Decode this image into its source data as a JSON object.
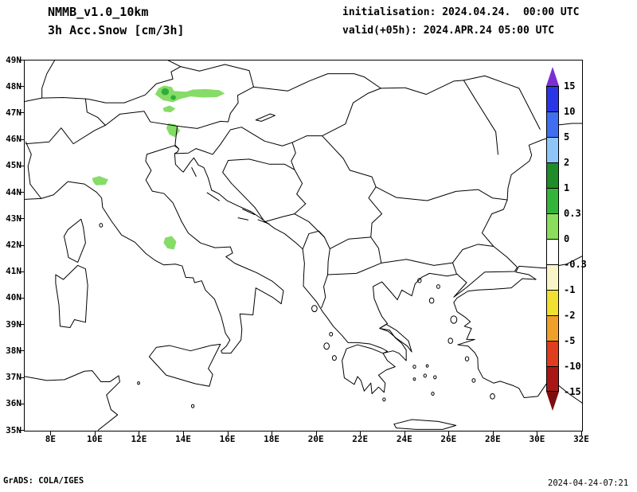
{
  "header": {
    "model": "NMMB_v1.0_10km",
    "field": "3h Acc.Snow [cm/3h]",
    "init": "initialisation: 2024.04.24.  00:00 UTC",
    "valid": "valid(+05h): 2024.APR.24 05:00 UTC"
  },
  "axes": {
    "lat_labels": [
      "49N",
      "48N",
      "47N",
      "46N",
      "45N",
      "44N",
      "43N",
      "42N",
      "41N",
      "40N",
      "39N",
      "38N",
      "37N",
      "36N",
      "35N"
    ],
    "lon_labels": [
      "8E",
      "10E",
      "12E",
      "14E",
      "16E",
      "18E",
      "20E",
      "22E",
      "24E",
      "26E",
      "28E",
      "30E",
      "32E"
    ],
    "lat_range": [
      35,
      49
    ],
    "lon_range": [
      6.8,
      32
    ]
  },
  "colorbar": {
    "levels": [
      "15",
      "10",
      "5",
      "2",
      "1",
      "0.3",
      "0",
      "-0.3",
      "-1",
      "-2",
      "-5",
      "-10",
      "-15"
    ],
    "colors": [
      "#7a2fd4",
      "#2a35e8",
      "#3f6ef0",
      "#8fc6f8",
      "#1e8c28",
      "#35b43c",
      "#8ade5c",
      "#ffffff",
      "#faf5c8",
      "#f0e032",
      "#f0a028",
      "#e03c1e",
      "#aa1616",
      "#7d0d0d"
    ]
  },
  "snow": {
    "fill_light": "#85dc66",
    "fill_medium": "#2fae37",
    "patches": [
      {
        "id": "patch-1",
        "lon": [
          12.7,
          15.85
        ],
        "lat": [
          47.42,
          48.05
        ],
        "value_cm": "0.3-2"
      },
      {
        "id": "patch-2",
        "lon": [
          13.05,
          13.62
        ],
        "lat": [
          47.04,
          47.3
        ],
        "value_cm": "0.3-1"
      },
      {
        "id": "patch-3",
        "lon": [
          13.2,
          13.82
        ],
        "lat": [
          46.1,
          46.62
        ],
        "value_cm": "0.3-1"
      },
      {
        "id": "patch-4",
        "lon": [
          9.85,
          10.58
        ],
        "lat": [
          44.28,
          44.63
        ],
        "value_cm": "0.3-1"
      },
      {
        "id": "patch-5",
        "lon": [
          13.08,
          13.66
        ],
        "lat": [
          41.85,
          42.36
        ],
        "value_cm": "0.3-1"
      }
    ]
  },
  "footer": {
    "credit": "GrADS: COLA/IGES",
    "timestamp": "2024-04-24-07:21"
  }
}
